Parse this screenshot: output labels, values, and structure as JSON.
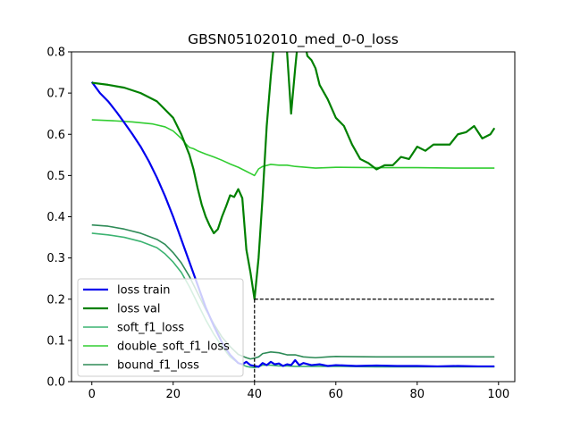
{
  "chart_data": {
    "type": "line",
    "title": "GBSN05102010_med_0-0_loss",
    "xlabel": "",
    "ylabel": "",
    "xlim": [
      -5,
      104
    ],
    "ylim": [
      0,
      0.8
    ],
    "x_ticks": [
      0,
      20,
      40,
      60,
      80,
      100
    ],
    "y_ticks": [
      0.0,
      0.1,
      0.2,
      0.3,
      0.4,
      0.5,
      0.6,
      0.7,
      0.8
    ],
    "grid": false,
    "legend_position": "lower-left",
    "series": [
      {
        "name": "loss train",
        "color": "#0000ee",
        "width": 2.2,
        "x": [
          0,
          2,
          4,
          6,
          8,
          10,
          12,
          14,
          16,
          18,
          20,
          22,
          24,
          26,
          28,
          30,
          32,
          34,
          35,
          36,
          37,
          38,
          39,
          40,
          41,
          42,
          43,
          44,
          45,
          46,
          47,
          48,
          49,
          50,
          51,
          52,
          54,
          56,
          58,
          60,
          65,
          70,
          75,
          80,
          85,
          90,
          95,
          99
        ],
        "y": [
          0.727,
          0.7,
          0.68,
          0.655,
          0.628,
          0.6,
          0.57,
          0.535,
          0.495,
          0.45,
          0.4,
          0.345,
          0.29,
          0.235,
          0.18,
          0.135,
          0.095,
          0.065,
          0.055,
          0.045,
          0.042,
          0.048,
          0.04,
          0.038,
          0.036,
          0.045,
          0.04,
          0.048,
          0.042,
          0.044,
          0.038,
          0.042,
          0.04,
          0.052,
          0.04,
          0.045,
          0.04,
          0.042,
          0.038,
          0.04,
          0.038,
          0.039,
          0.038,
          0.038,
          0.037,
          0.038,
          0.037,
          0.037
        ]
      },
      {
        "name": "loss val",
        "color": "#008000",
        "width": 2.2,
        "x": [
          0,
          4,
          8,
          12,
          16,
          20,
          22,
          24,
          25,
          26,
          27,
          28,
          29,
          30,
          31,
          32,
          33,
          34,
          35,
          36,
          37,
          38,
          39,
          40,
          41,
          42,
          43,
          44,
          45,
          46,
          47,
          48,
          49,
          50,
          51,
          52,
          53,
          54,
          55,
          56,
          58,
          60,
          62,
          64,
          66,
          68,
          70,
          72,
          74,
          76,
          78,
          80,
          82,
          84,
          86,
          88,
          90,
          92,
          94,
          96,
          98,
          99
        ],
        "y": [
          0.725,
          0.72,
          0.713,
          0.7,
          0.68,
          0.64,
          0.6,
          0.55,
          0.515,
          0.47,
          0.43,
          0.4,
          0.378,
          0.36,
          0.37,
          0.4,
          0.425,
          0.452,
          0.448,
          0.467,
          0.445,
          0.32,
          0.265,
          0.2,
          0.3,
          0.45,
          0.62,
          0.74,
          0.84,
          0.9,
          0.86,
          0.8,
          0.65,
          0.76,
          0.86,
          0.84,
          0.79,
          0.78,
          0.76,
          0.72,
          0.685,
          0.64,
          0.62,
          0.575,
          0.54,
          0.53,
          0.515,
          0.525,
          0.525,
          0.545,
          0.54,
          0.57,
          0.56,
          0.575,
          0.575,
          0.575,
          0.6,
          0.605,
          0.62,
          0.59,
          0.6,
          0.615
        ]
      },
      {
        "name": "soft_f1_loss",
        "color": "#3cb371",
        "width": 1.6,
        "x": [
          0,
          4,
          8,
          12,
          16,
          18,
          20,
          22,
          24,
          26,
          28,
          30,
          32,
          34,
          36,
          38,
          39,
          40,
          41,
          42,
          44,
          46,
          48,
          50,
          55,
          60,
          70,
          80,
          90,
          99
        ],
        "y": [
          0.36,
          0.356,
          0.35,
          0.34,
          0.325,
          0.31,
          0.29,
          0.265,
          0.23,
          0.19,
          0.15,
          0.115,
          0.085,
          0.06,
          0.045,
          0.037,
          0.035,
          0.034,
          0.036,
          0.04,
          0.04,
          0.038,
          0.038,
          0.037,
          0.037,
          0.037,
          0.036,
          0.036,
          0.036,
          0.036
        ]
      },
      {
        "name": "double_soft_f1_loss",
        "color": "#32cd32",
        "width": 1.6,
        "x": [
          0,
          5,
          10,
          15,
          18,
          20,
          22,
          23,
          24,
          25,
          26,
          28,
          30,
          32,
          34,
          36,
          38,
          39,
          40,
          41,
          42,
          44,
          46,
          48,
          50,
          55,
          60,
          70,
          80,
          90,
          99
        ],
        "y": [
          0.635,
          0.633,
          0.63,
          0.625,
          0.618,
          0.608,
          0.59,
          0.578,
          0.568,
          0.565,
          0.56,
          0.552,
          0.545,
          0.537,
          0.528,
          0.52,
          0.51,
          0.505,
          0.5,
          0.516,
          0.522,
          0.527,
          0.525,
          0.525,
          0.522,
          0.518,
          0.52,
          0.519,
          0.519,
          0.518,
          0.518
        ]
      },
      {
        "name": "bound_f1_loss",
        "color": "#2e8b57",
        "width": 1.6,
        "x": [
          0,
          4,
          8,
          12,
          16,
          18,
          20,
          22,
          24,
          26,
          28,
          30,
          32,
          34,
          36,
          38,
          39,
          40,
          41,
          42,
          44,
          46,
          48,
          50,
          52,
          55,
          58,
          60,
          70,
          80,
          90,
          99
        ],
        "y": [
          0.38,
          0.377,
          0.37,
          0.36,
          0.345,
          0.333,
          0.313,
          0.288,
          0.255,
          0.215,
          0.175,
          0.14,
          0.108,
          0.085,
          0.066,
          0.058,
          0.055,
          0.057,
          0.06,
          0.068,
          0.072,
          0.07,
          0.065,
          0.065,
          0.06,
          0.058,
          0.06,
          0.061,
          0.06,
          0.06,
          0.06,
          0.06
        ]
      }
    ],
    "reference_lines": {
      "color": "#000000",
      "vertical_x": 40,
      "horizontal_y": 0.2,
      "horizontal_x_range": [
        40,
        99
      ]
    }
  }
}
